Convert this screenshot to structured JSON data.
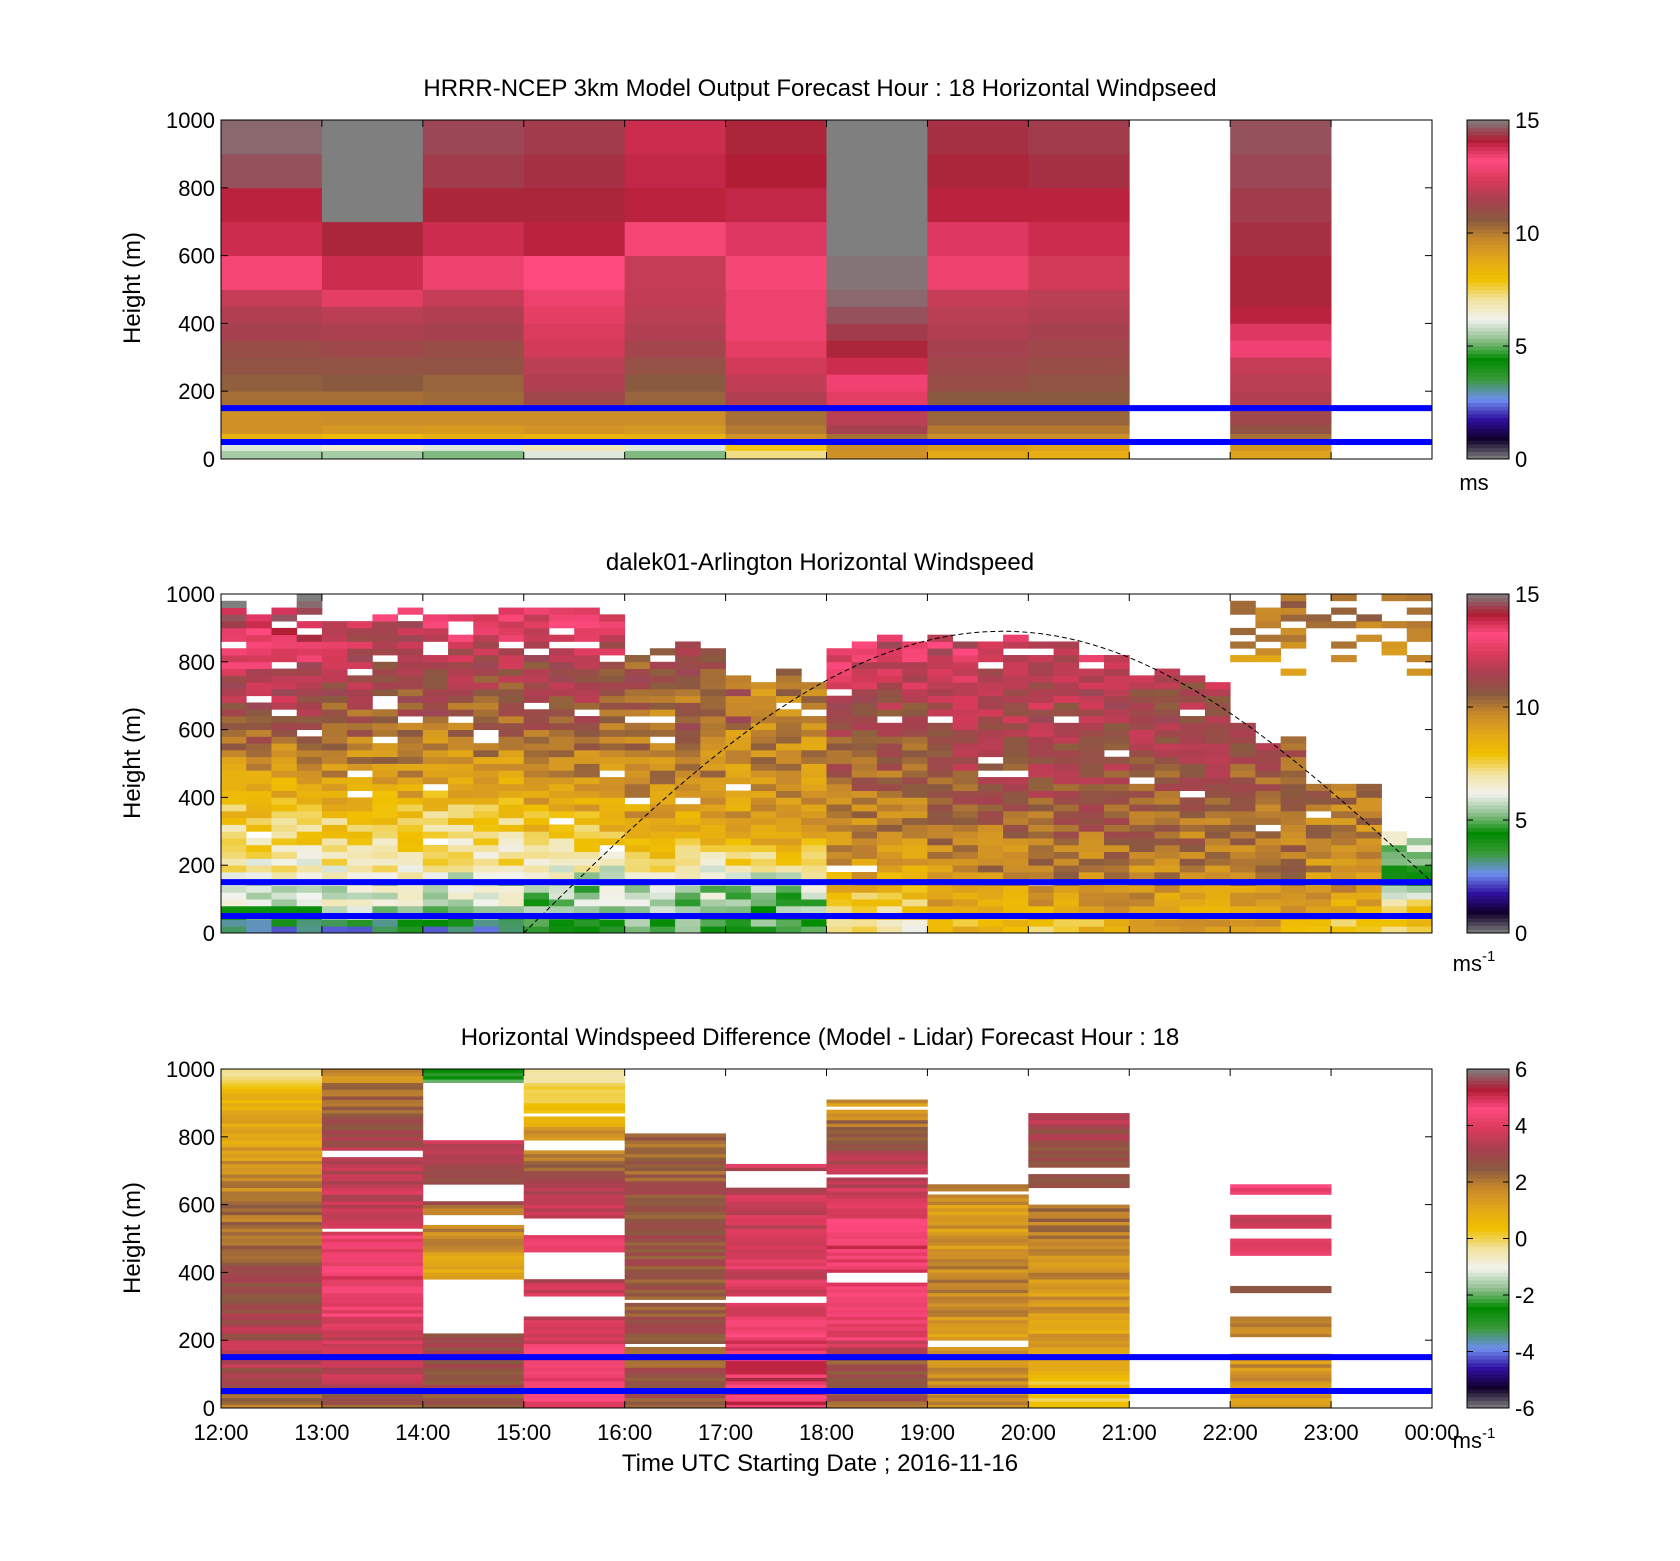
{
  "figure": {
    "xlabel": "Time UTC  Starting Date ; 2016-11-16",
    "x_tick_labels": [
      "12:00",
      "13:00",
      "14:00",
      "15:00",
      "16:00",
      "17:00",
      "18:00",
      "19:00",
      "20:00",
      "21:00",
      "22:00",
      "23:00",
      "00:00"
    ]
  },
  "colors": {
    "reference_line": "#0000ff",
    "colormap_stops": [
      "#7f7f7f",
      "#10002a",
      "#2f0fa0",
      "#6f8ff0",
      "#3a9a3a",
      "#008a00",
      "#8fc08f",
      "#f2f2ee",
      "#f2e3a0",
      "#f0c000",
      "#e3a818",
      "#c98a2a",
      "#8a5a40",
      "#a84050",
      "#d93a5a",
      "#ff4a80",
      "#b01c34",
      "#7f7f7f"
    ]
  },
  "chart_data": [
    {
      "type": "heatmap",
      "title": "HRRR-NCEP 3km Model Output   Forecast Hour : 18 Horizontal Windpseed",
      "xlabel": "",
      "ylabel": "Height (m)",
      "ylim": [
        0,
        1000
      ],
      "y_ticks": [
        0,
        200,
        400,
        600,
        800,
        1000
      ],
      "colorbar": {
        "min": 0,
        "max": 15,
        "ticks": [
          0,
          5,
          10,
          15
        ],
        "label": "ms",
        "label_sup": ""
      },
      "reference_lines_height_m": [
        150,
        50
      ],
      "x_hours": [
        "12:00",
        "13:00",
        "14:00",
        "15:00",
        "16:00",
        "17:00",
        "18:00",
        "19:00",
        "20:00",
        "21:00",
        "22:00",
        "23:00"
      ],
      "height_bins_m": [
        0,
        25,
        50,
        75,
        100,
        150,
        200,
        250,
        300,
        350,
        400,
        450,
        500,
        600,
        700,
        800,
        900,
        1000
      ],
      "values": [
        [
          5.5,
          6.0,
          8.5,
          9.5,
          9.5,
          10.2,
          10.5,
          10.8,
          11.0,
          11.4,
          11.6,
          12.0,
          13.0,
          13.8,
          14.0,
          14.6,
          14.8
        ],
        [
          5.5,
          6.5,
          8.2,
          9.3,
          9.6,
          10.2,
          10.6,
          10.8,
          11.2,
          11.5,
          11.8,
          12.6,
          13.8,
          14.2,
          15.0,
          "out",
          "out"
        ],
        [
          5.2,
          6.0,
          8.6,
          9.2,
          9.6,
          10.3,
          10.4,
          10.8,
          11.0,
          11.4,
          11.6,
          12.0,
          12.8,
          13.8,
          14.2,
          14.4,
          14.5
        ],
        [
          6.0,
          6.8,
          8.4,
          9.4,
          9.6,
          11.2,
          11.6,
          11.8,
          12.2,
          12.4,
          12.6,
          12.8,
          13.2,
          14.0,
          14.2,
          14.3,
          14.4
        ],
        [
          5.2,
          6.0,
          8.5,
          9.3,
          9.6,
          10.4,
          10.6,
          10.9,
          11.3,
          11.6,
          11.8,
          11.9,
          12.0,
          13.0,
          14.0,
          13.9,
          13.8
        ],
        [
          7.2,
          7.8,
          9.5,
          10.0,
          10.2,
          11.6,
          11.9,
          12.2,
          12.6,
          12.8,
          12.8,
          12.8,
          13.0,
          13.6,
          13.9,
          14.1,
          14.2
        ],
        [
          9.5,
          9.6,
          10.2,
          11.4,
          11.8,
          12.6,
          13.4,
          13.8,
          14.2,
          14.4,
          14.6,
          14.8,
          14.9,
          "out",
          "out",
          "out",
          "out"
        ],
        [
          8.8,
          9.2,
          9.6,
          10.0,
          10.4,
          10.6,
          11.0,
          11.2,
          11.4,
          11.6,
          11.8,
          12.0,
          12.8,
          13.6,
          14.0,
          14.2,
          14.3
        ],
        [
          8.6,
          9.0,
          9.6,
          10.0,
          10.4,
          10.6,
          10.8,
          11.0,
          11.2,
          11.4,
          11.6,
          11.8,
          12.2,
          13.8,
          14.0,
          14.3,
          14.4
        ],
        [
          null,
          null,
          null,
          null,
          null,
          null,
          null,
          null,
          null,
          null,
          null,
          null,
          null,
          null,
          null,
          null,
          null
        ],
        [
          9.0,
          9.4,
          10.2,
          10.8,
          11.2,
          11.6,
          11.8,
          12.0,
          13.4,
          13.6,
          14.0,
          14.2,
          14.2,
          14.3,
          14.4,
          14.5,
          14.6
        ],
        [
          null,
          null,
          null,
          null,
          null,
          null,
          null,
          null,
          null,
          null,
          null,
          null,
          null,
          null,
          null,
          null,
          null
        ]
      ]
    },
    {
      "type": "heatmap",
      "title": "dalek01-Arlington  Horizontal Windspeed",
      "xlabel": "",
      "ylabel": "Height (m)",
      "ylim": [
        0,
        1000
      ],
      "y_ticks": [
        0,
        200,
        400,
        600,
        800,
        1000
      ],
      "colorbar": {
        "min": 0,
        "max": 15,
        "ticks": [
          0,
          5,
          10,
          15
        ],
        "label": "ms",
        "label_sup": "-1"
      },
      "reference_lines_height_m": [
        150,
        50
      ],
      "column_width_hours": 0.25,
      "row_height_m": 20,
      "profile_anchor_heights_m": [
        0,
        50,
        100,
        150,
        200,
        300,
        400,
        500,
        600,
        700,
        800,
        900,
        1000
      ],
      "profiles": [
        {
          "start_hour": 12.0,
          "end_hour": 13.0,
          "top_m": 1000,
          "values": [
            2.0,
            4.5,
            6.0,
            6.2,
            6.8,
            7.4,
            8.2,
            9.3,
            10.8,
            11.6,
            12.4,
            13.8,
            14.4
          ]
        },
        {
          "start_hour": 13.0,
          "end_hour": 14.0,
          "top_m": 960,
          "values": [
            2.5,
            5.0,
            6.3,
            6.0,
            7.0,
            7.6,
            8.6,
            9.6,
            10.4,
            11.0,
            11.6,
            12.2,
            12.6
          ]
        },
        {
          "start_hour": 14.0,
          "end_hour": 15.0,
          "top_m": 980,
          "values": [
            2.5,
            5.0,
            6.0,
            5.8,
            7.0,
            7.2,
            8.2,
            9.4,
            10.2,
            10.8,
            11.4,
            12.6,
            13.0
          ]
        },
        {
          "start_hour": 15.0,
          "end_hour": 16.0,
          "top_m": 960,
          "values": [
            3.5,
            5.0,
            5.5,
            5.6,
            6.6,
            8.0,
            9.0,
            9.8,
            10.4,
            11.0,
            11.4,
            12.4,
            12.6
          ]
        },
        {
          "start_hour": 16.0,
          "end_hour": 17.0,
          "top_m": 860,
          "values": [
            4.5,
            5.0,
            5.5,
            5.8,
            7.0,
            8.6,
            9.4,
            9.8,
            10.0,
            10.4,
            10.8,
            11.0,
            11.0
          ]
        },
        {
          "start_hour": 17.0,
          "end_hour": 18.0,
          "top_m": 780,
          "values": [
            4.5,
            5.0,
            5.3,
            5.6,
            7.2,
            9.0,
            9.4,
            9.6,
            9.6,
            9.8,
            10.0,
            10.0,
            10.0
          ]
        },
        {
          "start_hour": 18.0,
          "end_hour": 19.0,
          "top_m": 880,
          "values": [
            6.5,
            7.5,
            8.0,
            8.6,
            9.2,
            9.8,
            10.2,
            10.6,
            11.0,
            11.4,
            12.4,
            13.6,
            14.0
          ]
        },
        {
          "start_hour": 19.0,
          "end_hour": 20.0,
          "top_m": 880,
          "values": [
            8.0,
            8.5,
            9.0,
            9.4,
            9.8,
            10.2,
            10.6,
            11.2,
            11.6,
            11.8,
            12.2,
            12.8,
            13.0
          ]
        },
        {
          "start_hour": 20.0,
          "end_hour": 21.0,
          "top_m": 860,
          "values": [
            8.0,
            8.5,
            9.2,
            9.6,
            10.0,
            10.4,
            10.8,
            11.2,
            11.4,
            11.6,
            12.0,
            12.6,
            13.0
          ]
        },
        {
          "start_hour": 21.0,
          "end_hour": 22.0,
          "top_m": 780,
          "values": [
            8.5,
            9.0,
            9.2,
            9.6,
            9.8,
            10.2,
            10.6,
            11.0,
            11.2,
            11.4,
            11.6,
            11.8,
            12.0
          ]
        },
        {
          "start_hour": 22.0,
          "end_hour": 22.75,
          "top_m": 620,
          "values": [
            8.5,
            9.0,
            9.4,
            9.6,
            9.8,
            10.2,
            10.6,
            10.8,
            11.0,
            11.2,
            11.4,
            11.6,
            11.8
          ]
        },
        {
          "start_hour": 22.75,
          "end_hour": 23.5,
          "top_m": 460,
          "values": [
            7.5,
            8.5,
            9.0,
            9.4,
            9.6,
            9.8,
            10.0,
            10.2,
            10.4,
            10.6,
            10.8,
            11.0,
            11.0
          ]
        },
        {
          "start_hour": 23.5,
          "end_hour": 24.0,
          "top_m": 300,
          "values": [
            7.0,
            8.0,
            6.5,
            4.0,
            5.0,
            6.0,
            7.0,
            8.0,
            9.0,
            10.0,
            10.0,
            10.0,
            10.0
          ]
        }
      ],
      "elevated_fragments": [
        {
          "start_hour": 22.0,
          "end_hour": 24.0,
          "bottom_m": 760,
          "top_m": 1000,
          "values": [
            9.2,
            9.6,
            10.0,
            10.2
          ]
        }
      ],
      "dashed_curve": {
        "start_hour": 15.0,
        "end_hour": 24.0,
        "peak_hour": 19.75,
        "peak_height_m": 890,
        "end_height_m": 150
      }
    },
    {
      "type": "heatmap",
      "title": "Horizontal Windspeed Difference (Model - Lidar) Forecast Hour : 18",
      "xlabel": "Time UTC  Starting Date ; 2016-11-16",
      "ylabel": "Height (m)",
      "ylim": [
        -0.01,
        1000
      ],
      "y_ticks": [
        0,
        200,
        400,
        600,
        800,
        1000
      ],
      "colorbar": {
        "min": -6,
        "max": 6,
        "ticks": [
          -6,
          -4,
          -2,
          0,
          2,
          4,
          6
        ],
        "label": "ms",
        "label_sup": "-1"
      },
      "reference_lines_height_m": [
        150,
        50
      ],
      "row_height_m": 10,
      "profile_anchor_heights_m": [
        0,
        50,
        100,
        150,
        200,
        300,
        400,
        500,
        600,
        700,
        800,
        900,
        1000
      ],
      "profiles": [
        {
          "start_hour": 12.0,
          "end_hour": 13.0,
          "top_m": 1000,
          "values": [
            1.5,
            2.5,
            3.0,
            3.5,
            3.2,
            3.0,
            2.8,
            2.4,
            2.0,
            1.6,
            1.2,
            0.8,
            0.0
          ]
        },
        {
          "start_hour": 13.0,
          "end_hour": 14.0,
          "top_m": 1000,
          "values": [
            2.5,
            3.0,
            3.5,
            3.6,
            3.6,
            4.4,
            4.6,
            4.2,
            3.6,
            3.4,
            3.0,
            2.4,
            1.6
          ]
        },
        {
          "start_hour": 14.0,
          "end_hour": 15.0,
          "top_m": 1000,
          "values": [
            2.5,
            2.6,
            2.8,
            2.8,
            3.0,
            null,
            1.2,
            1.6,
            2.4,
            3.2,
            3.6,
            null,
            -2.0
          ]
        },
        {
          "start_hour": 15.0,
          "end_hour": 16.0,
          "top_m": 1000,
          "values": [
            4.0,
            4.6,
            4.6,
            4.5,
            4.0,
            3.6,
            null,
            4.4,
            3.6,
            2.6,
            1.6,
            0.4,
            -0.4
          ]
        },
        {
          "start_hour": 16.0,
          "end_hour": 17.0,
          "top_m": 860,
          "values": [
            2.6,
            2.6,
            2.6,
            2.5,
            2.6,
            2.6,
            2.6,
            2.6,
            2.8,
            2.4,
            2.2,
            -2.5,
            -2.5
          ]
        },
        {
          "start_hour": 17.0,
          "end_hour": 18.0,
          "top_m": 720,
          "values": [
            4.8,
            5.0,
            5.0,
            4.6,
            4.6,
            3.6,
            3.8,
            3.8,
            3.6,
            3.4,
            6.0,
            6.0,
            6.0
          ]
        },
        {
          "start_hour": 18.0,
          "end_hour": 19.0,
          "top_m": 910,
          "values": [
            2.5,
            2.6,
            2.6,
            2.6,
            4.0,
            4.4,
            4.6,
            4.8,
            4.0,
            3.4,
            2.6,
            1.4,
            1.4
          ]
        },
        {
          "start_hour": 19.0,
          "end_hour": 20.0,
          "top_m": 660,
          "values": [
            1.6,
            1.8,
            1.8,
            1.6,
            1.2,
            1.6,
            1.8,
            1.4,
            1.4,
            3.4,
            3.4,
            3.4,
            3.4
          ]
        },
        {
          "start_hour": 20.0,
          "end_hour": 21.0,
          "top_m": 870,
          "values": [
            0.0,
            0.3,
            0.5,
            1.0,
            1.2,
            1.4,
            1.6,
            1.8,
            2.2,
            2.6,
            3.0,
            3.4,
            3.4
          ]
        },
        {
          "start_hour": 22.0,
          "end_hour": 23.0,
          "top_m": 160,
          "values": [
            1.4,
            1.5,
            1.6,
            1.6,
            1.6,
            1.6,
            1.6,
            1.6,
            1.6,
            1.6,
            1.6,
            1.6,
            1.6
          ]
        }
      ],
      "gaps_m": [
        {
          "start_hour": 12.0,
          "end_hour": 13.0,
          "gaps": []
        },
        {
          "start_hour": 13.0,
          "end_hour": 14.0,
          "gaps": [
            [
              520,
              530
            ],
            [
              740,
              760
            ]
          ]
        },
        {
          "start_hour": 14.0,
          "end_hour": 15.0,
          "gaps": [
            [
              220,
              380
            ],
            [
              540,
              570
            ],
            [
              610,
              660
            ],
            [
              790,
              960
            ]
          ]
        },
        {
          "start_hour": 15.0,
          "end_hour": 16.0,
          "gaps": [
            [
              270,
              330
            ],
            [
              380,
              460
            ],
            [
              510,
              560
            ],
            [
              760,
              790
            ],
            [
              860,
              870
            ]
          ]
        },
        {
          "start_hour": 16.0,
          "end_hour": 17.0,
          "gaps": [
            [
              180,
              190
            ],
            [
              310,
              320
            ],
            [
              810,
              860
            ]
          ]
        },
        {
          "start_hour": 17.0,
          "end_hour": 18.0,
          "gaps": [
            [
              310,
              330
            ],
            [
              650,
              700
            ]
          ]
        },
        {
          "start_hour": 18.0,
          "end_hour": 19.0,
          "gaps": [
            [
              370,
              400
            ],
            [
              680,
              690
            ],
            [
              880,
              890
            ]
          ]
        },
        {
          "start_hour": 19.0,
          "end_hour": 20.0,
          "gaps": [
            [
              180,
              200
            ],
            [
              630,
              640
            ]
          ]
        },
        {
          "start_hour": 20.0,
          "end_hour": 21.0,
          "gaps": [
            [
              600,
              650
            ],
            [
              690,
              710
            ]
          ]
        },
        {
          "start_hour": 22.0,
          "end_hour": 23.0,
          "gaps": []
        }
      ],
      "strips": [
        {
          "start_hour": 22.0,
          "end_hour": 23.0,
          "bottom_m": 210,
          "top_m": 270,
          "value": 1.8
        },
        {
          "start_hour": 22.0,
          "end_hour": 23.0,
          "bottom_m": 340,
          "top_m": 360,
          "value": 2.6
        },
        {
          "start_hour": 22.0,
          "end_hour": 23.0,
          "bottom_m": 450,
          "top_m": 500,
          "value": 4.2
        },
        {
          "start_hour": 22.0,
          "end_hour": 23.0,
          "bottom_m": 530,
          "top_m": 570,
          "value": 3.6
        },
        {
          "start_hour": 22.0,
          "end_hour": 23.0,
          "bottom_m": 630,
          "top_m": 660,
          "value": 4.6
        }
      ]
    }
  ]
}
